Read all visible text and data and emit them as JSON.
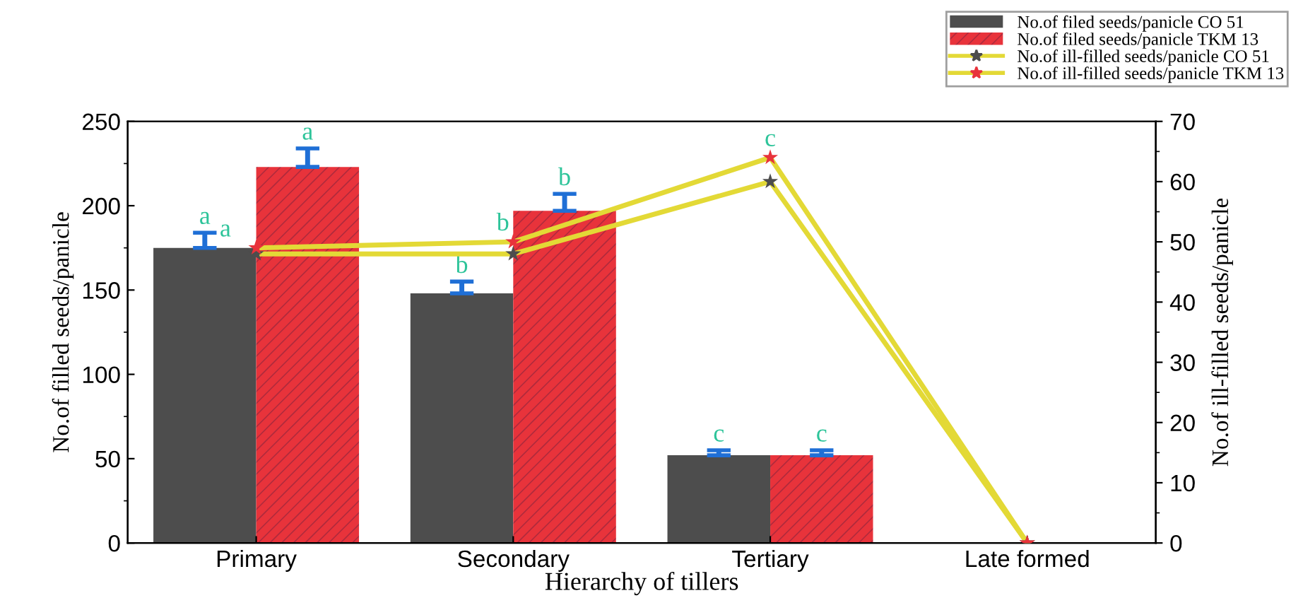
{
  "chart_data": {
    "type": "bar",
    "categories": [
      "Primary",
      "Secondary",
      "Tertiary",
      "Late formed"
    ],
    "xlabel": "Hierarchy of tillers",
    "ylabel": "No.of filled seeds/panicle",
    "y2label": "No.of ill-filled seeds/panicle",
    "ylim": [
      0,
      250
    ],
    "yticks": [
      0,
      50,
      100,
      150,
      200,
      250
    ],
    "y2lim": [
      0,
      70
    ],
    "y2ticks": [
      0,
      10,
      20,
      30,
      40,
      50,
      60,
      70
    ],
    "legend": "top right",
    "grid": false,
    "series": [
      {
        "name": "No.of filed seeds/panicle CO 51",
        "color": "#4d4d4d",
        "values": [
          175,
          148,
          52,
          null
        ],
        "errors": [
          9,
          7,
          3,
          null
        ],
        "value_labels": [
          "a",
          "b",
          "c",
          null
        ]
      },
      {
        "name": "No.of filed seeds/panicle TKM 13",
        "color": "#e8333b",
        "values": [
          223,
          197,
          52,
          null
        ],
        "errors": [
          11,
          10,
          3,
          null
        ],
        "value_labels": [
          "a",
          "b",
          "c",
          null
        ]
      },
      {
        "name": "No.of ill-filled seeds/panicle CO 51",
        "type": "line",
        "axis": "y2",
        "color": "#e3d936",
        "colors": [
          "#4d4d4d",
          "#4d4d4d",
          "#4d4d4d",
          "#4d4d4d"
        ],
        "marker": "star",
        "values": [
          48,
          48,
          60,
          0
        ]
      },
      {
        "name": "No.of ill-filled seeds/panicle TKM 13",
        "type": "line",
        "axis": "y2",
        "color": "#e3d936",
        "colors": [
          "#e8333b",
          "#e8333b",
          "#e8333b",
          "#e8333b"
        ],
        "marker": "star",
        "values": [
          49,
          50,
          64,
          0
        ],
        "value_labels": [
          "a",
          "b",
          "c",
          null
        ]
      }
    ]
  }
}
